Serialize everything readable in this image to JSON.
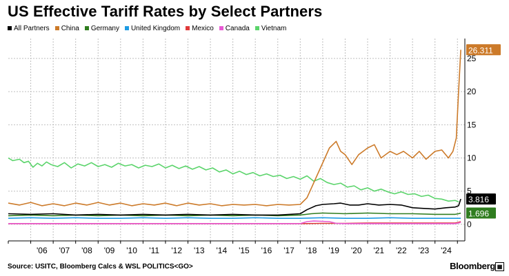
{
  "chart_data": {
    "type": "line",
    "title": "US Effective Tariff Rates by Select Partners",
    "xlabel": "",
    "ylabel": "",
    "x_range": [
      2005.0,
      2025.33
    ],
    "ylim": [
      -2.5,
      28
    ],
    "yticks": [
      0,
      5,
      10,
      15,
      20,
      25
    ],
    "ytick_labels": [
      "0",
      "5",
      "10",
      "15",
      "20",
      "25"
    ],
    "xticks": [
      2006,
      2007,
      2008,
      2009,
      2010,
      2011,
      2012,
      2013,
      2014,
      2015,
      2016,
      2017,
      2018,
      2019,
      2020,
      2021,
      2022,
      2023,
      2024
    ],
    "xtick_labels": [
      "'06",
      "'07",
      "'08",
      "'09",
      "'10",
      "'11",
      "'12",
      "'13",
      "'14",
      "'15",
      "'16",
      "'17",
      "'18",
      "'19",
      "'20",
      "'21",
      "'22",
      "'23",
      "'24"
    ],
    "grid": true,
    "legend_position": "top-left",
    "series": [
      {
        "name": "All Partners",
        "color": "#000000",
        "x": [
          2005.0,
          2006.0,
          2007.0,
          2008.0,
          2009.0,
          2010.0,
          2011.0,
          2012.0,
          2013.0,
          2014.0,
          2015.0,
          2016.0,
          2017.0,
          2018.0,
          2018.3,
          2018.7,
          2019.0,
          2019.5,
          2019.8,
          2020.2,
          2020.6,
          2021.0,
          2021.5,
          2022.0,
          2022.5,
          2023.0,
          2023.5,
          2024.0,
          2024.5,
          2024.9,
          2025.05,
          2025.15
        ],
        "values": [
          1.6,
          1.5,
          1.6,
          1.4,
          1.5,
          1.4,
          1.5,
          1.4,
          1.5,
          1.4,
          1.5,
          1.4,
          1.4,
          1.6,
          2.2,
          2.8,
          3.0,
          3.1,
          3.2,
          2.9,
          2.9,
          3.1,
          2.9,
          3.0,
          2.9,
          2.5,
          2.4,
          2.3,
          2.5,
          2.6,
          2.8,
          3.816
        ],
        "end_label": "3.816"
      },
      {
        "name": "China",
        "color": "#cc7a29",
        "x": [
          2005.0,
          2005.5,
          2006.0,
          2006.5,
          2007.0,
          2007.5,
          2008.0,
          2008.5,
          2009.0,
          2009.5,
          2010.0,
          2010.5,
          2011.0,
          2011.5,
          2012.0,
          2012.5,
          2013.0,
          2013.5,
          2014.0,
          2014.5,
          2015.0,
          2015.5,
          2016.0,
          2016.5,
          2017.0,
          2017.5,
          2018.0,
          2018.3,
          2018.5,
          2018.7,
          2018.9,
          2019.1,
          2019.3,
          2019.6,
          2019.8,
          2020.0,
          2020.3,
          2020.6,
          2021.0,
          2021.3,
          2021.6,
          2022.0,
          2022.3,
          2022.6,
          2023.0,
          2023.3,
          2023.6,
          2024.0,
          2024.3,
          2024.6,
          2024.8,
          2024.95,
          2025.05,
          2025.15
        ],
        "values": [
          3.2,
          2.9,
          3.3,
          2.8,
          3.1,
          2.8,
          3.2,
          2.9,
          3.3,
          2.9,
          3.2,
          2.8,
          3.1,
          2.9,
          3.2,
          2.8,
          3.2,
          2.9,
          3.1,
          2.8,
          3.0,
          2.9,
          3.0,
          2.8,
          3.0,
          2.9,
          3.0,
          4.0,
          5.5,
          7.0,
          8.5,
          10.0,
          11.5,
          12.5,
          11.0,
          10.5,
          9.0,
          10.5,
          11.5,
          12.0,
          10.0,
          11.0,
          10.5,
          11.0,
          10.0,
          11.0,
          9.8,
          11.0,
          11.2,
          10.0,
          11.0,
          13.0,
          20.0,
          26.311
        ],
        "end_label": "26.311"
      },
      {
        "name": "Germany",
        "color": "#2f7d1f",
        "x": [
          2005.0,
          2006.0,
          2007.0,
          2008.0,
          2009.0,
          2010.0,
          2011.0,
          2012.0,
          2013.0,
          2014.0,
          2015.0,
          2016.0,
          2017.0,
          2018.0,
          2018.5,
          2019.0,
          2020.0,
          2021.0,
          2022.0,
          2023.0,
          2024.0,
          2024.9,
          2025.05,
          2025.15
        ],
        "values": [
          1.3,
          1.4,
          1.3,
          1.4,
          1.3,
          1.4,
          1.3,
          1.4,
          1.3,
          1.4,
          1.3,
          1.4,
          1.3,
          1.4,
          1.6,
          1.7,
          1.6,
          1.7,
          1.6,
          1.6,
          1.5,
          1.5,
          1.6,
          1.696
        ],
        "end_label": "1.696"
      },
      {
        "name": "United Kingdom",
        "color": "#1e9be3",
        "x": [
          2005.0,
          2006.0,
          2007.0,
          2008.0,
          2009.0,
          2010.0,
          2011.0,
          2012.0,
          2013.0,
          2014.0,
          2015.0,
          2016.0,
          2017.0,
          2018.0,
          2019.0,
          2020.0,
          2021.0,
          2022.0,
          2023.0,
          2024.0,
          2025.0,
          2025.15
        ],
        "values": [
          0.9,
          1.0,
          0.9,
          1.0,
          0.9,
          0.9,
          1.0,
          0.9,
          1.0,
          0.9,
          0.9,
          1.0,
          0.9,
          0.9,
          1.0,
          0.9,
          0.9,
          1.0,
          0.9,
          0.9,
          0.9,
          0.9
        ]
      },
      {
        "name": "Mexico",
        "color": "#e03a3a",
        "x": [
          2005.0,
          2010.0,
          2015.0,
          2018.0,
          2019.0,
          2020.0,
          2021.0,
          2022.0,
          2023.0,
          2024.0,
          2024.9,
          2025.05,
          2025.15
        ],
        "values": [
          0.1,
          0.1,
          0.1,
          0.1,
          0.15,
          0.15,
          0.2,
          0.2,
          0.2,
          0.2,
          0.2,
          0.3,
          0.4
        ]
      },
      {
        "name": "Canada",
        "color": "#e85bd4",
        "x": [
          2005.0,
          2010.0,
          2015.0,
          2018.0,
          2018.3,
          2018.6,
          2019.3,
          2019.6,
          2020.0,
          2021.0,
          2022.0,
          2023.0,
          2024.0,
          2024.9,
          2025.05,
          2025.15
        ],
        "values": [
          0.1,
          0.1,
          0.1,
          0.1,
          0.4,
          0.5,
          0.4,
          0.15,
          0.1,
          0.1,
          0.1,
          0.1,
          0.1,
          0.1,
          0.2,
          0.3
        ]
      },
      {
        "name": "Vietnam",
        "color": "#5bd46b",
        "x": [
          2005.0,
          2005.2,
          2005.5,
          2005.7,
          2005.9,
          2006.1,
          2006.3,
          2006.5,
          2006.7,
          2006.9,
          2007.2,
          2007.5,
          2007.8,
          2008.1,
          2008.4,
          2008.7,
          2009.0,
          2009.3,
          2009.6,
          2009.9,
          2010.2,
          2010.5,
          2010.8,
          2011.1,
          2011.4,
          2011.7,
          2012.0,
          2012.3,
          2012.6,
          2012.9,
          2013.2,
          2013.5,
          2013.8,
          2014.1,
          2014.4,
          2014.7,
          2015.0,
          2015.3,
          2015.6,
          2015.9,
          2016.2,
          2016.5,
          2016.8,
          2017.1,
          2017.4,
          2017.7,
          2018.0,
          2018.3,
          2018.6,
          2018.9,
          2019.2,
          2019.5,
          2019.8,
          2020.1,
          2020.4,
          2020.7,
          2021.0,
          2021.3,
          2021.6,
          2021.9,
          2022.2,
          2022.5,
          2022.8,
          2023.1,
          2023.4,
          2023.7,
          2024.0,
          2024.3,
          2024.6,
          2024.9,
          2025.05
        ],
        "values": [
          10.0,
          9.6,
          9.8,
          9.3,
          9.5,
          8.6,
          9.2,
          8.8,
          9.4,
          9.0,
          8.7,
          9.3,
          8.5,
          9.1,
          8.8,
          9.3,
          8.7,
          9.0,
          8.6,
          9.2,
          8.8,
          9.0,
          8.5,
          8.9,
          8.7,
          9.1,
          8.5,
          8.9,
          8.4,
          8.8,
          8.3,
          8.7,
          8.2,
          8.5,
          7.9,
          8.2,
          7.6,
          8.0,
          7.5,
          7.8,
          7.3,
          7.6,
          7.2,
          7.4,
          6.9,
          7.2,
          6.8,
          7.3,
          6.5,
          6.9,
          6.3,
          6.0,
          6.2,
          5.6,
          5.8,
          5.2,
          5.5,
          5.0,
          5.3,
          4.9,
          4.6,
          4.9,
          4.5,
          4.6,
          4.2,
          4.4,
          3.9,
          3.8,
          3.5,
          3.6,
          3.4
        ]
      }
    ]
  },
  "source": "Source: USITC, Bloomberg Calcs & WSL POLITICS<GO>",
  "brand": "Bloomberg"
}
